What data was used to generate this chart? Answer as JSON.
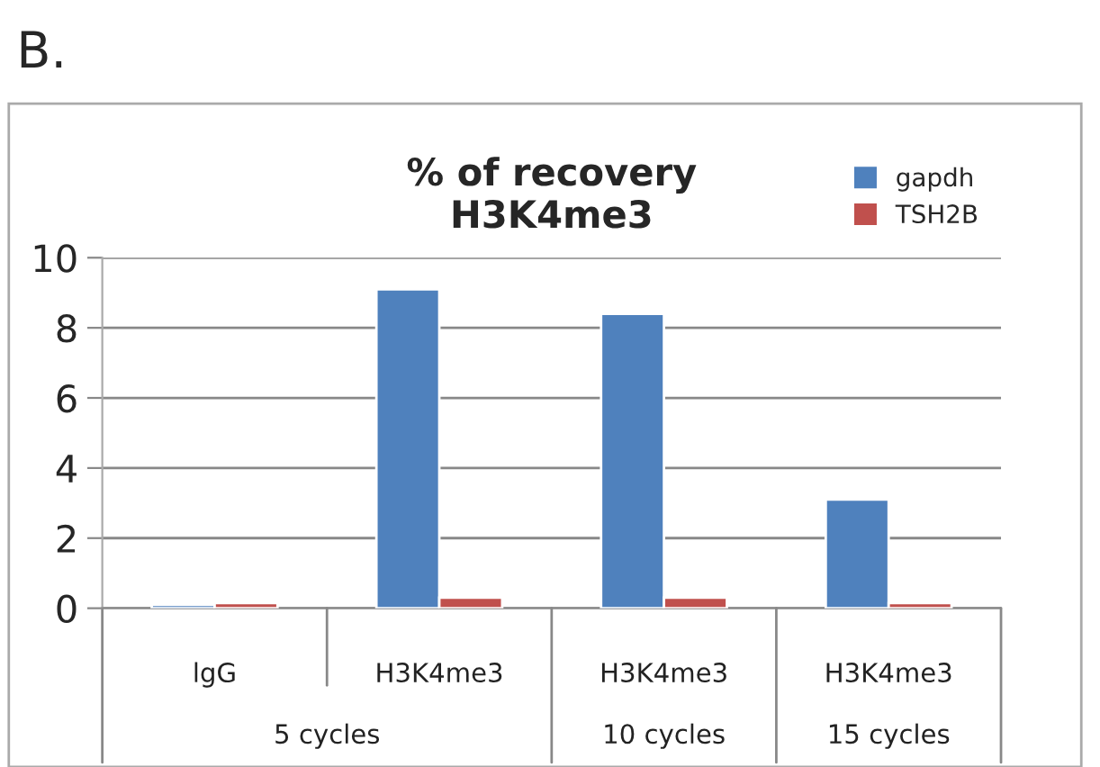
{
  "chart_data": {
    "type": "bar",
    "title": "% of recovery\nH3K4me3",
    "categories": [
      "lgG",
      "H3K4me3",
      "H3K4me3",
      "H3K4me3"
    ],
    "series": [
      {
        "name": "gapdh",
        "color": "#4f81bd",
        "values": [
          0.1,
          9.1,
          8.4,
          3.1
        ]
      },
      {
        "name": "TSH2B",
        "color": "#c0504d",
        "values": [
          0.15,
          0.3,
          0.3,
          0.15
        ]
      }
    ],
    "ylim": [
      0,
      10
    ],
    "yticks": [
      0,
      2,
      4,
      6,
      8,
      10
    ],
    "grid": "y",
    "legend": "top right",
    "annotations": [
      "B.",
      "5 cycles",
      "10 cycles",
      "15 cycles"
    ]
  }
}
